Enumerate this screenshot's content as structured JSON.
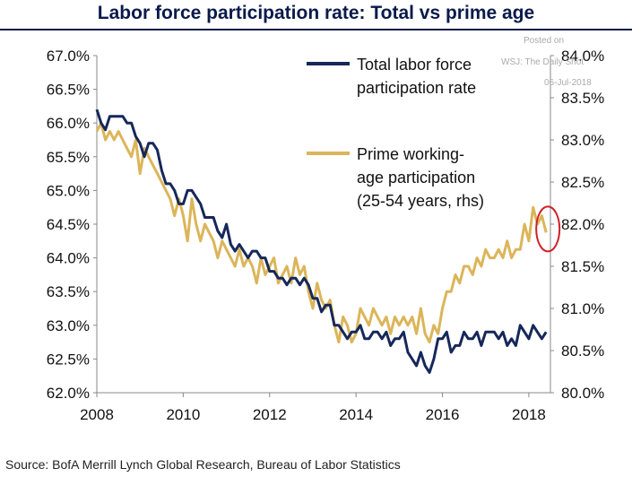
{
  "title": "Labor force participation rate: Total vs prime age",
  "source": "Source:  BofA Merrill Lynch Global Research, Bureau of Labor Statistics",
  "watermark": [
    "Posted on",
    "WSJ: The Daily Shot",
    "06-Jul-2018"
  ],
  "colors": {
    "total": "#16285a",
    "prime": "#dcb55a",
    "circle": "#d0202a",
    "title": "#0a1a4a"
  },
  "chart_data": {
    "type": "line",
    "title": "Labor force participation rate: Total vs prime age",
    "x_ticks": [
      "2008",
      "2010",
      "2012",
      "2014",
      "2016",
      "2018"
    ],
    "xlim": [
      2008.0,
      2018.5
    ],
    "left_axis": {
      "ticks": [
        "67.0%",
        "66.5%",
        "66.0%",
        "65.5%",
        "65.0%",
        "64.5%",
        "64.0%",
        "63.5%",
        "63.0%",
        "62.5%",
        "62.0%"
      ],
      "ylim": [
        62.0,
        67.0
      ]
    },
    "right_axis": {
      "ticks": [
        "84.0%",
        "83.5%",
        "83.0%",
        "82.5%",
        "82.0%",
        "81.5%",
        "81.0%",
        "80.5%",
        "80.0%"
      ],
      "ylim": [
        80.0,
        84.0
      ]
    },
    "legend": [
      {
        "lines": [
          "Total labor force",
          "participation rate"
        ]
      },
      {
        "lines": [
          "Prime working-",
          "age participation",
          "(25-54 years, rhs)"
        ]
      }
    ],
    "series": [
      {
        "name": "Total labor force participation rate",
        "axis": "left",
        "x": [
          2008.0,
          2008.1,
          2008.2,
          2008.3,
          2008.4,
          2008.5,
          2008.6,
          2008.7,
          2008.8,
          2008.9,
          2009.0,
          2009.1,
          2009.2,
          2009.3,
          2009.4,
          2009.5,
          2009.6,
          2009.7,
          2009.8,
          2009.9,
          2010.0,
          2010.1,
          2010.2,
          2010.3,
          2010.4,
          2010.5,
          2010.6,
          2010.7,
          2010.8,
          2010.9,
          2011.0,
          2011.1,
          2011.2,
          2011.3,
          2011.4,
          2011.5,
          2011.6,
          2011.7,
          2011.8,
          2011.9,
          2012.0,
          2012.1,
          2012.2,
          2012.3,
          2012.4,
          2012.5,
          2012.6,
          2012.7,
          2012.8,
          2012.9,
          2013.0,
          2013.1,
          2013.2,
          2013.3,
          2013.4,
          2013.5,
          2013.6,
          2013.7,
          2013.8,
          2013.9,
          2014.0,
          2014.1,
          2014.2,
          2014.3,
          2014.4,
          2014.5,
          2014.6,
          2014.7,
          2014.8,
          2014.9,
          2015.0,
          2015.1,
          2015.2,
          2015.3,
          2015.4,
          2015.5,
          2015.6,
          2015.7,
          2015.8,
          2015.9,
          2016.0,
          2016.1,
          2016.2,
          2016.3,
          2016.4,
          2016.5,
          2016.6,
          2016.7,
          2016.8,
          2016.9,
          2017.0,
          2017.1,
          2017.2,
          2017.3,
          2017.4,
          2017.5,
          2017.6,
          2017.7,
          2017.8,
          2017.9,
          2018.0,
          2018.1,
          2018.2,
          2018.3,
          2018.4
        ],
        "values": [
          66.2,
          66.0,
          65.9,
          66.1,
          66.1,
          66.1,
          66.1,
          66.0,
          66.0,
          65.8,
          65.7,
          65.5,
          65.7,
          65.7,
          65.6,
          65.3,
          65.1,
          65.1,
          65.0,
          64.8,
          64.8,
          65.0,
          65.0,
          64.9,
          64.8,
          64.6,
          64.6,
          64.6,
          64.4,
          64.3,
          64.5,
          64.2,
          64.1,
          64.2,
          64.1,
          64.0,
          64.1,
          64.1,
          64.0,
          64.0,
          63.8,
          63.8,
          63.7,
          63.7,
          63.6,
          63.7,
          63.7,
          63.6,
          63.7,
          63.6,
          63.4,
          63.4,
          63.2,
          63.3,
          63.3,
          63.0,
          63.0,
          62.9,
          62.8,
          62.9,
          62.9,
          63.0,
          62.8,
          62.8,
          62.9,
          62.9,
          62.8,
          62.9,
          62.7,
          62.8,
          62.8,
          62.9,
          62.6,
          62.5,
          62.4,
          62.6,
          62.4,
          62.3,
          62.5,
          62.8,
          62.8,
          62.9,
          62.6,
          62.7,
          62.7,
          62.9,
          62.8,
          62.8,
          62.9,
          62.7,
          62.9,
          62.9,
          62.9,
          62.8,
          62.9,
          62.7,
          62.8,
          62.7,
          63.0,
          62.9,
          62.8,
          63.0,
          62.9,
          62.8,
          62.9
        ]
      },
      {
        "name": "Prime working-age participation (25-54 years, rhs)",
        "axis": "right",
        "x": [
          2008.0,
          2008.1,
          2008.2,
          2008.3,
          2008.4,
          2008.5,
          2008.6,
          2008.7,
          2008.8,
          2008.9,
          2009.0,
          2009.1,
          2009.2,
          2009.3,
          2009.4,
          2009.5,
          2009.6,
          2009.7,
          2009.8,
          2009.9,
          2010.0,
          2010.1,
          2010.2,
          2010.3,
          2010.4,
          2010.5,
          2010.6,
          2010.7,
          2010.8,
          2010.9,
          2011.0,
          2011.1,
          2011.2,
          2011.3,
          2011.4,
          2011.5,
          2011.6,
          2011.7,
          2011.8,
          2011.9,
          2012.0,
          2012.1,
          2012.2,
          2012.3,
          2012.4,
          2012.5,
          2012.6,
          2012.7,
          2012.8,
          2012.9,
          2013.0,
          2013.1,
          2013.2,
          2013.3,
          2013.4,
          2013.5,
          2013.6,
          2013.7,
          2013.8,
          2013.9,
          2014.0,
          2014.1,
          2014.2,
          2014.3,
          2014.4,
          2014.5,
          2014.6,
          2014.7,
          2014.8,
          2014.9,
          2015.0,
          2015.1,
          2015.2,
          2015.3,
          2015.4,
          2015.5,
          2015.6,
          2015.7,
          2015.8,
          2015.9,
          2016.0,
          2016.1,
          2016.2,
          2016.3,
          2016.4,
          2016.5,
          2016.6,
          2016.7,
          2016.8,
          2016.9,
          2017.0,
          2017.1,
          2017.2,
          2017.3,
          2017.4,
          2017.5,
          2017.6,
          2017.7,
          2017.8,
          2017.9,
          2018.0,
          2018.1,
          2018.2,
          2018.3,
          2018.4
        ],
        "values": [
          83.1,
          83.2,
          83.0,
          83.1,
          83.0,
          83.1,
          83.0,
          82.9,
          82.8,
          83.0,
          82.6,
          82.9,
          82.8,
          82.7,
          82.6,
          82.5,
          82.4,
          82.3,
          82.1,
          82.3,
          82.1,
          81.8,
          82.3,
          82.0,
          81.8,
          82.0,
          81.9,
          81.8,
          81.6,
          81.8,
          81.7,
          81.6,
          81.5,
          81.7,
          81.5,
          81.6,
          81.5,
          81.3,
          81.6,
          81.4,
          81.5,
          81.6,
          81.3,
          81.4,
          81.5,
          81.3,
          81.6,
          81.4,
          81.5,
          81.2,
          81.0,
          81.3,
          81.1,
          81.0,
          81.1,
          80.8,
          80.6,
          80.9,
          80.8,
          80.6,
          80.7,
          81.0,
          80.9,
          80.8,
          81.0,
          80.9,
          80.8,
          80.9,
          80.7,
          80.9,
          80.8,
          80.9,
          80.8,
          80.9,
          80.7,
          81.0,
          80.7,
          80.6,
          80.8,
          80.7,
          81.0,
          81.2,
          81.2,
          81.4,
          81.3,
          81.5,
          81.5,
          81.4,
          81.6,
          81.5,
          81.7,
          81.6,
          81.6,
          81.7,
          81.6,
          81.8,
          81.6,
          81.7,
          81.7,
          82.0,
          81.8,
          82.2,
          82.0,
          82.1,
          81.9
        ]
      }
    ]
  }
}
